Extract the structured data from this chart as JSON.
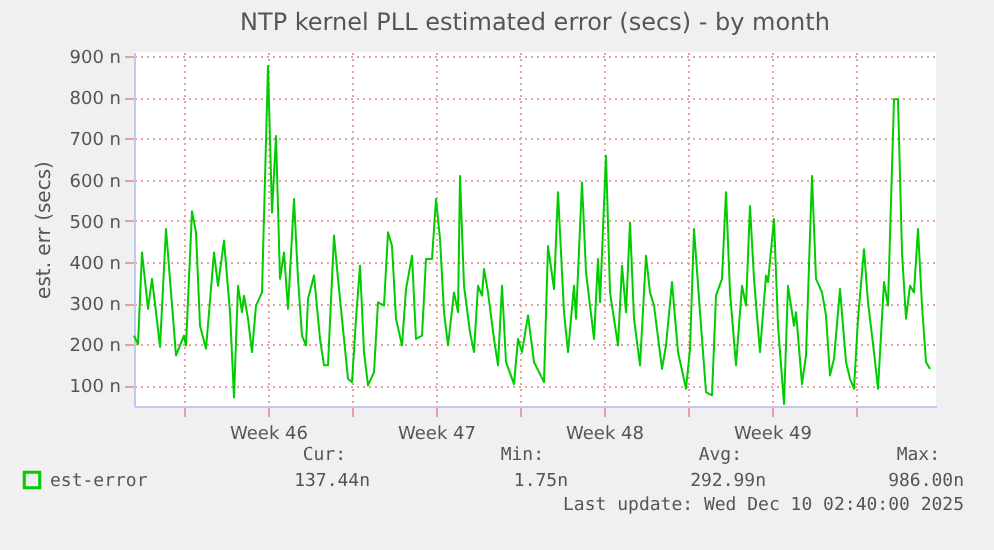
{
  "chart_data": {
    "type": "line",
    "title": "NTP kernel PLL estimated error (secs) - by month",
    "ylabel": "est. err (secs)",
    "xlim": [
      "2025-11-06T22:00",
      "2025-12-10T08:00"
    ],
    "xticks": [
      {
        "value": "2025-11-09T00:00",
        "label": null
      },
      {
        "value": "2025-11-12T12:00",
        "label": "Week 46"
      },
      {
        "value": "2025-11-16T00:00",
        "label": null
      },
      {
        "value": "2025-11-19T12:00",
        "label": "Week 47"
      },
      {
        "value": "2025-11-23T00:00",
        "label": null
      },
      {
        "value": "2025-11-26T12:00",
        "label": "Week 48"
      },
      {
        "value": "2025-11-30T00:00",
        "label": null
      },
      {
        "value": "2025-12-03T12:00",
        "label": "Week 49"
      },
      {
        "value": "2025-12-07T00:00",
        "label": null
      }
    ],
    "ylim": [
      50,
      910
    ],
    "yticks": [
      {
        "value": 100,
        "label": "100 n"
      },
      {
        "value": 200,
        "label": "200 n"
      },
      {
        "value": 300,
        "label": "300 n"
      },
      {
        "value": 400,
        "label": "400 n"
      },
      {
        "value": 500,
        "label": "500 n"
      },
      {
        "value": 600,
        "label": "600 n"
      },
      {
        "value": 700,
        "label": "700 n"
      },
      {
        "value": 800,
        "label": "800 n"
      },
      {
        "value": 900,
        "label": "900 n"
      }
    ],
    "grid": true,
    "legend": "bottom left",
    "marker": "none",
    "line_style": "solid",
    "x": [
      "2025-11-06T22:00",
      "2025-11-07T02:00",
      "2025-11-07T06:00",
      "2025-11-07T12:00",
      "2025-11-07T16:00",
      "2025-11-07T20:00",
      "2025-11-08T00:00",
      "2025-11-08T06:00",
      "2025-11-08T16:00",
      "2025-11-09T00:00",
      "2025-11-09T02:00",
      "2025-11-09T08:00",
      "2025-11-09T12:00",
      "2025-11-09T16:00",
      "2025-11-09T22:00",
      "2025-11-10T06:00",
      "2025-11-10T10:00",
      "2025-11-10T16:00",
      "2025-11-10T22:00",
      "2025-11-11T02:00",
      "2025-11-11T06:00",
      "2025-11-11T10:00",
      "2025-11-11T12:00",
      "2025-11-11T16:00",
      "2025-11-11T20:00",
      "2025-11-12T00:00",
      "2025-11-12T06:00",
      "2025-11-12T12:00",
      "2025-11-12T16:00",
      "2025-11-12T20:00",
      "2025-11-13T00:00",
      "2025-11-13T04:00",
      "2025-11-13T08:00",
      "2025-11-13T14:00",
      "2025-11-13T18:00",
      "2025-11-13T22:00",
      "2025-11-14T02:00",
      "2025-11-14T04:00",
      "2025-11-14T10:00",
      "2025-11-14T16:00",
      "2025-11-14T20:00",
      "2025-11-15T00:00",
      "2025-11-15T06:00",
      "2025-11-15T10:00",
      "2025-11-15T16:00",
      "2025-11-15T20:00",
      "2025-11-16T00:00",
      "2025-11-16T04:00",
      "2025-11-16T08:00",
      "2025-11-16T12:00",
      "2025-11-16T16:00",
      "2025-11-16T22:00",
      "2025-11-17T02:00",
      "2025-11-17T08:00",
      "2025-11-17T12:00",
      "2025-11-17T16:00",
      "2025-11-17T20:00",
      "2025-11-18T02:00",
      "2025-11-18T06:00",
      "2025-11-18T12:00",
      "2025-11-18T16:00",
      "2025-11-18T22:00",
      "2025-11-19T02:00",
      "2025-11-19T08:00",
      "2025-11-19T12:00",
      "2025-11-19T16:00",
      "2025-11-19T20:00",
      "2025-11-20T00:00",
      "2025-11-20T06:00",
      "2025-11-20T10:00",
      "2025-11-20T12:00",
      "2025-11-20T16:00",
      "2025-11-20T22:00",
      "2025-11-21T02:00",
      "2025-11-21T06:00",
      "2025-11-21T10:00",
      "2025-11-21T12:00",
      "2025-11-21T16:00",
      "2025-11-21T22:00",
      "2025-11-22T02:00",
      "2025-11-22T06:00",
      "2025-11-22T10:00",
      "2025-11-22T18:00",
      "2025-11-22T22:00",
      "2025-11-23T02:00",
      "2025-11-23T08:00",
      "2025-11-23T14:00",
      "2025-11-24T00:00",
      "2025-11-24T04:00",
      "2025-11-24T10:00",
      "2025-11-24T14:00",
      "2025-11-24T20:00",
      "2025-11-25T00:00",
      "2025-11-25T06:00",
      "2025-11-25T08:00",
      "2025-11-25T14:00",
      "2025-11-25T18:00",
      "2025-11-26T02:00",
      "2025-11-26T06:00",
      "2025-11-26T08:00",
      "2025-11-26T14:00",
      "2025-11-26T18:00",
      "2025-11-27T02:00",
      "2025-11-27T06:00",
      "2025-11-27T10:00",
      "2025-11-27T14:00",
      "2025-11-27T18:00",
      "2025-11-28T00:00",
      "2025-11-28T06:00",
      "2025-11-28T10:00",
      "2025-11-28T14:00",
      "2025-11-28T22:00",
      "2025-11-29T02:00",
      "2025-11-29T08:00",
      "2025-11-29T14:00",
      "2025-11-29T22:00",
      "2025-11-30T02:00",
      "2025-11-30T06:00",
      "2025-11-30T12:00",
      "2025-11-30T18:00",
      "2025-12-01T00:00",
      "2025-12-01T04:00",
      "2025-12-01T10:00",
      "2025-12-01T14:00",
      "2025-12-01T18:00",
      "2025-12-02T00:00",
      "2025-12-02T06:00",
      "2025-12-02T10:00",
      "2025-12-02T14:00",
      "2025-12-02T18:00",
      "2025-12-03T00:00",
      "2025-12-03T06:00",
      "2025-12-03T08:00",
      "2025-12-03T14:00",
      "2025-12-03T18:00",
      "2025-12-04T00:00",
      "2025-12-04T04:00",
      "2025-12-04T10:00",
      "2025-12-04T12:00",
      "2025-12-04T18:00",
      "2025-12-04T22:00",
      "2025-12-05T04:00",
      "2025-12-05T08:00",
      "2025-12-05T14:00",
      "2025-12-05T18:00",
      "2025-12-05T22:00",
      "2025-12-06T02:00",
      "2025-12-06T08:00",
      "2025-12-06T14:00",
      "2025-12-06T18:00",
      "2025-12-06T22:00",
      "2025-12-07T02:00",
      "2025-12-07T08:00",
      "2025-12-07T12:00",
      "2025-12-07T18:00",
      "2025-12-07T22:00",
      "2025-12-08T04:00",
      "2025-12-08T08:00",
      "2025-12-08T14:00",
      "2025-12-08T18:00",
      "2025-12-08T22:00",
      "2025-12-09T02:00",
      "2025-12-09T06:00",
      "2025-12-09T10:00",
      "2025-12-09T14:00",
      "2025-12-09T18:00",
      "2025-12-09T22:00",
      "2025-12-10T02:00"
    ],
    "series": [
      {
        "name": "est-error",
        "color": "#00cc00",
        "values": [
          221,
          200,
          423,
          286,
          359,
          278,
          194,
          480,
          173,
          221,
          197,
          523,
          472,
          245,
          189,
          423,
          342,
          452,
          278,
          71,
          342,
          278,
          318,
          262,
          181,
          294,
          326,
          876,
          520,
          706,
          359,
          423,
          286,
          553,
          359,
          221,
          197,
          310,
          367,
          213,
          149,
          149,
          464,
          359,
          213,
          116,
          108,
          262,
          391,
          181,
          100,
          132,
          302,
          294,
          472,
          439,
          262,
          197,
          334,
          415,
          213,
          221,
          407,
          407,
          553,
          456,
          278,
          197,
          326,
          278,
          609,
          342,
          229,
          181,
          342,
          318,
          383,
          326,
          213,
          149,
          342,
          157,
          103,
          213,
          181,
          270,
          157,
          108,
          439,
          334,
          569,
          278,
          181,
          342,
          262,
          593,
          375,
          213,
          407,
          302,
          658,
          326,
          197,
          391,
          278,
          496,
          262,
          149,
          415,
          326,
          294,
          140,
          197,
          351,
          181,
          92,
          189,
          480,
          278,
          84,
          76,
          318,
          359,
          569,
          326,
          149,
          342,
          294,
          536,
          359,
          181,
          367,
          351,
          504,
          245,
          55,
          342,
          245,
          278,
          103,
          173,
          609,
          359,
          326,
          270,
          124,
          165,
          334,
          157,
          116,
          92,
          262,
          431,
          302,
          181,
          92,
          351,
          294,
          795,
          795,
          423,
          262,
          342,
          326,
          480,
          294,
          157,
          140
        ]
      }
    ],
    "annotations": [
      "Cur:",
      "Min:",
      "Avg:",
      "Max:",
      "137.44n",
      "1.75n",
      "292.99n",
      "986.00n",
      "Last update: Wed Dec 10 02:40:00 2025"
    ]
  }
}
